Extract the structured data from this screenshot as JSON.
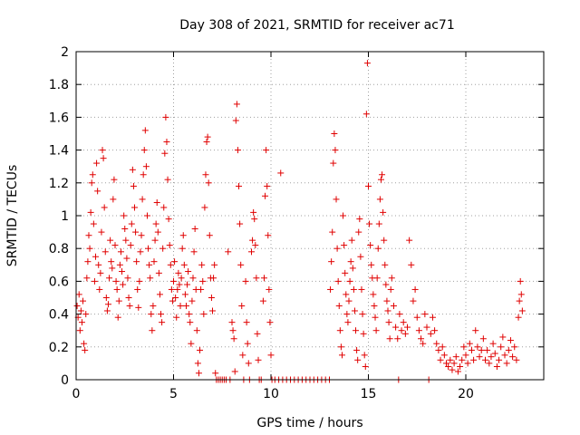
{
  "chart_data": {
    "type": "scatter",
    "title": "Day 308 of 2021, SRMTID for receiver ac71",
    "xlabel": "GPS time / hours",
    "ylabel": "SRMTID / TECUs",
    "xlim": [
      0,
      24
    ],
    "ylim": [
      0,
      2
    ],
    "x_ticks": [
      "0",
      "5",
      "10",
      "15",
      "20"
    ],
    "x_tick_values": [
      0,
      5,
      10,
      15,
      20
    ],
    "y_ticks": [
      "0",
      "0.2",
      "0.4",
      "0.6",
      "0.8",
      "1",
      "1.2",
      "1.4",
      "1.6",
      "1.8",
      "2"
    ],
    "y_tick_values": [
      0,
      0.2,
      0.4,
      0.6,
      0.8,
      1.0,
      1.2,
      1.4,
      1.6,
      1.8,
      2.0
    ],
    "grid": true,
    "marker": "+",
    "color": "#e00000",
    "points": [
      [
        0.05,
        0.45
      ],
      [
        0.1,
        0.38
      ],
      [
        0.15,
        0.52
      ],
      [
        0.2,
        0.3
      ],
      [
        0.25,
        0.42
      ],
      [
        0.3,
        0.35
      ],
      [
        0.35,
        0.48
      ],
      [
        0.4,
        0.22
      ],
      [
        0.45,
        0.18
      ],
      [
        0.5,
        0.4
      ],
      [
        0.55,
        0.62
      ],
      [
        0.6,
        0.72
      ],
      [
        0.65,
        0.88
      ],
      [
        0.7,
        0.8
      ],
      [
        0.75,
        1.02
      ],
      [
        0.8,
        1.2
      ],
      [
        0.85,
        1.25
      ],
      [
        0.9,
        0.95
      ],
      [
        0.95,
        0.6
      ],
      [
        1.0,
        0.75
      ],
      [
        1.05,
        1.32
      ],
      [
        1.1,
        1.15
      ],
      [
        1.15,
        0.7
      ],
      [
        1.2,
        0.55
      ],
      [
        1.25,
        0.65
      ],
      [
        1.3,
        0.9
      ],
      [
        1.35,
        1.4
      ],
      [
        1.4,
        1.35
      ],
      [
        1.45,
        1.05
      ],
      [
        1.5,
        0.78
      ],
      [
        1.55,
        0.5
      ],
      [
        1.6,
        0.42
      ],
      [
        1.65,
        0.46
      ],
      [
        1.7,
        0.62
      ],
      [
        1.75,
        0.85
      ],
      [
        1.8,
        0.72
      ],
      [
        1.85,
        0.68
      ],
      [
        1.9,
        1.1
      ],
      [
        1.95,
        1.22
      ],
      [
        2.0,
        0.82
      ],
      [
        2.05,
        0.6
      ],
      [
        2.1,
        0.55
      ],
      [
        2.15,
        0.38
      ],
      [
        2.2,
        0.48
      ],
      [
        2.25,
        0.7
      ],
      [
        2.3,
        0.78
      ],
      [
        2.35,
        0.66
      ],
      [
        2.4,
        0.58
      ],
      [
        2.45,
        1.0
      ],
      [
        2.5,
        0.92
      ],
      [
        2.55,
        0.85
      ],
      [
        2.6,
        0.74
      ],
      [
        2.65,
        0.62
      ],
      [
        2.7,
        0.5
      ],
      [
        2.75,
        0.45
      ],
      [
        2.8,
        0.82
      ],
      [
        2.85,
        0.95
      ],
      [
        2.9,
        1.28
      ],
      [
        2.95,
        1.18
      ],
      [
        3.0,
        1.05
      ],
      [
        3.05,
        0.9
      ],
      [
        3.1,
        0.72
      ],
      [
        3.15,
        0.55
      ],
      [
        3.2,
        0.44
      ],
      [
        3.25,
        0.6
      ],
      [
        3.3,
        0.78
      ],
      [
        3.35,
        0.88
      ],
      [
        3.4,
        1.1
      ],
      [
        3.45,
        1.25
      ],
      [
        3.5,
        1.4
      ],
      [
        3.55,
        1.52
      ],
      [
        3.6,
        1.3
      ],
      [
        3.65,
        1.0
      ],
      [
        3.7,
        0.8
      ],
      [
        3.75,
        0.7
      ],
      [
        3.8,
        0.62
      ],
      [
        3.85,
        0.4
      ],
      [
        3.9,
        0.3
      ],
      [
        3.95,
        0.45
      ],
      [
        4.0,
        0.72
      ],
      [
        4.05,
        0.85
      ],
      [
        4.1,
        0.95
      ],
      [
        4.15,
        1.08
      ],
      [
        4.2,
        0.9
      ],
      [
        4.25,
        0.65
      ],
      [
        4.3,
        0.52
      ],
      [
        4.35,
        0.4
      ],
      [
        4.4,
        0.35
      ],
      [
        4.45,
        0.8
      ],
      [
        4.5,
        1.05
      ],
      [
        4.55,
        1.38
      ],
      [
        4.6,
        1.6
      ],
      [
        4.65,
        1.45
      ],
      [
        4.7,
        1.22
      ],
      [
        4.75,
        0.98
      ],
      [
        4.8,
        0.82
      ],
      [
        4.85,
        0.7
      ],
      [
        4.9,
        0.55
      ],
      [
        4.95,
        0.48
      ],
      [
        5.0,
        0.6
      ],
      [
        5.05,
        0.72
      ],
      [
        5.1,
        0.5
      ],
      [
        5.15,
        0.38
      ],
      [
        5.2,
        0.55
      ],
      [
        5.25,
        0.65
      ],
      [
        5.3,
        0.58
      ],
      [
        5.35,
        0.45
      ],
      [
        5.4,
        0.62
      ],
      [
        5.45,
        0.8
      ],
      [
        5.5,
        0.88
      ],
      [
        5.55,
        0.7
      ],
      [
        5.6,
        0.52
      ],
      [
        5.65,
        0.45
      ],
      [
        5.7,
        0.58
      ],
      [
        5.75,
        0.66
      ],
      [
        5.8,
        0.4
      ],
      [
        5.85,
        0.35
      ],
      [
        5.9,
        0.22
      ],
      [
        5.95,
        0.48
      ],
      [
        6.0,
        0.62
      ],
      [
        6.05,
        0.78
      ],
      [
        6.1,
        0.92
      ],
      [
        6.15,
        0.55
      ],
      [
        6.2,
        0.3
      ],
      [
        6.25,
        0.1
      ],
      [
        6.3,
        0.04
      ],
      [
        6.35,
        0.18
      ],
      [
        6.4,
        0.55
      ],
      [
        6.45,
        0.7
      ],
      [
        6.5,
        0.6
      ],
      [
        6.55,
        0.4
      ],
      [
        6.6,
        1.05
      ],
      [
        6.65,
        1.25
      ],
      [
        6.7,
        1.45
      ],
      [
        6.75,
        1.48
      ],
      [
        6.8,
        1.2
      ],
      [
        6.85,
        0.88
      ],
      [
        6.9,
        0.62
      ],
      [
        6.95,
        0.5
      ],
      [
        7.0,
        0.42
      ],
      [
        7.05,
        0.62
      ],
      [
        7.1,
        0.7
      ],
      [
        7.15,
        0.04
      ],
      [
        7.2,
        0.0
      ],
      [
        7.3,
        0.0
      ],
      [
        7.4,
        0.0
      ],
      [
        7.5,
        0.0
      ],
      [
        7.6,
        0.0
      ],
      [
        7.7,
        0.0
      ],
      [
        7.8,
        0.78
      ],
      [
        7.9,
        0.0
      ],
      [
        8.0,
        0.35
      ],
      [
        8.05,
        0.3
      ],
      [
        8.1,
        0.25
      ],
      [
        8.15,
        0.05
      ],
      [
        8.2,
        1.58
      ],
      [
        8.25,
        1.68
      ],
      [
        8.3,
        1.4
      ],
      [
        8.35,
        1.18
      ],
      [
        8.4,
        0.95
      ],
      [
        8.45,
        0.7
      ],
      [
        8.5,
        0.45
      ],
      [
        8.55,
        0.15
      ],
      [
        8.6,
        0.0
      ],
      [
        8.7,
        0.6
      ],
      [
        8.75,
        0.35
      ],
      [
        8.8,
        0.22
      ],
      [
        8.85,
        0.1
      ],
      [
        8.9,
        0.0
      ],
      [
        9.0,
        0.78
      ],
      [
        9.05,
        0.85
      ],
      [
        9.1,
        1.02
      ],
      [
        9.15,
        0.98
      ],
      [
        9.2,
        0.82
      ],
      [
        9.25,
        0.62
      ],
      [
        9.3,
        0.28
      ],
      [
        9.35,
        0.12
      ],
      [
        9.4,
        0.0
      ],
      [
        9.5,
        0.0
      ],
      [
        9.6,
        0.48
      ],
      [
        9.65,
        0.62
      ],
      [
        9.7,
        1.12
      ],
      [
        9.75,
        1.4
      ],
      [
        9.8,
        1.18
      ],
      [
        9.85,
        0.88
      ],
      [
        9.9,
        0.55
      ],
      [
        9.95,
        0.35
      ],
      [
        10.0,
        0.15
      ],
      [
        10.05,
        0.0
      ],
      [
        10.2,
        0.0
      ],
      [
        10.4,
        0.0
      ],
      [
        10.5,
        1.26
      ],
      [
        10.6,
        0.0
      ],
      [
        10.8,
        0.0
      ],
      [
        11.0,
        0.0
      ],
      [
        11.2,
        0.0
      ],
      [
        11.4,
        0.0
      ],
      [
        11.6,
        0.0
      ],
      [
        11.8,
        0.0
      ],
      [
        12.0,
        0.0
      ],
      [
        12.2,
        0.0
      ],
      [
        12.4,
        0.0
      ],
      [
        12.6,
        0.0
      ],
      [
        12.8,
        0.0
      ],
      [
        13.0,
        0.0
      ],
      [
        13.05,
        0.55
      ],
      [
        13.1,
        0.72
      ],
      [
        13.15,
        0.9
      ],
      [
        13.2,
        1.32
      ],
      [
        13.25,
        1.5
      ],
      [
        13.3,
        1.4
      ],
      [
        13.35,
        1.1
      ],
      [
        13.4,
        0.8
      ],
      [
        13.45,
        0.6
      ],
      [
        13.5,
        0.45
      ],
      [
        13.55,
        0.3
      ],
      [
        13.6,
        0.2
      ],
      [
        13.65,
        0.15
      ],
      [
        13.7,
        1.0
      ],
      [
        13.75,
        0.82
      ],
      [
        13.8,
        0.65
      ],
      [
        13.85,
        0.52
      ],
      [
        13.9,
        0.4
      ],
      [
        13.95,
        0.35
      ],
      [
        14.0,
        0.48
      ],
      [
        14.05,
        0.6
      ],
      [
        14.1,
        0.72
      ],
      [
        14.15,
        0.85
      ],
      [
        14.2,
        0.68
      ],
      [
        14.25,
        0.55
      ],
      [
        14.3,
        0.42
      ],
      [
        14.35,
        0.3
      ],
      [
        14.4,
        0.18
      ],
      [
        14.45,
        0.12
      ],
      [
        14.5,
        0.9
      ],
      [
        14.55,
        0.98
      ],
      [
        14.6,
        0.75
      ],
      [
        14.65,
        0.55
      ],
      [
        14.7,
        0.4
      ],
      [
        14.75,
        0.28
      ],
      [
        14.8,
        0.15
      ],
      [
        14.85,
        0.08
      ],
      [
        14.9,
        1.62
      ],
      [
        14.95,
        1.93
      ],
      [
        15.0,
        1.18
      ],
      [
        15.05,
        0.95
      ],
      [
        15.1,
        0.82
      ],
      [
        15.15,
        0.7
      ],
      [
        15.2,
        0.62
      ],
      [
        15.25,
        0.52
      ],
      [
        15.3,
        0.45
      ],
      [
        15.35,
        0.38
      ],
      [
        15.4,
        0.3
      ],
      [
        15.45,
        0.62
      ],
      [
        15.5,
        0.8
      ],
      [
        15.55,
        0.95
      ],
      [
        15.6,
        1.1
      ],
      [
        15.65,
        1.22
      ],
      [
        15.7,
        1.25
      ],
      [
        15.75,
        1.02
      ],
      [
        15.8,
        0.85
      ],
      [
        15.85,
        0.7
      ],
      [
        15.9,
        0.58
      ],
      [
        15.95,
        0.48
      ],
      [
        16.0,
        0.42
      ],
      [
        16.05,
        0.35
      ],
      [
        16.1,
        0.25
      ],
      [
        16.15,
        0.55
      ],
      [
        16.2,
        0.62
      ],
      [
        16.3,
        0.45
      ],
      [
        16.4,
        0.32
      ],
      [
        16.5,
        0.25
      ],
      [
        16.55,
        0.0
      ],
      [
        16.6,
        0.4
      ],
      [
        16.7,
        0.3
      ],
      [
        16.8,
        0.35
      ],
      [
        16.9,
        0.28
      ],
      [
        17.0,
        0.32
      ],
      [
        17.1,
        0.85
      ],
      [
        17.2,
        0.7
      ],
      [
        17.3,
        0.48
      ],
      [
        17.4,
        0.55
      ],
      [
        17.5,
        0.38
      ],
      [
        17.6,
        0.3
      ],
      [
        17.7,
        0.25
      ],
      [
        17.8,
        0.22
      ],
      [
        17.9,
        0.4
      ],
      [
        18.0,
        0.32
      ],
      [
        18.1,
        0.0
      ],
      [
        18.2,
        0.28
      ],
      [
        18.3,
        0.38
      ],
      [
        18.4,
        0.3
      ],
      [
        18.5,
        0.22
      ],
      [
        18.6,
        0.18
      ],
      [
        18.7,
        0.12
      ],
      [
        18.8,
        0.2
      ],
      [
        18.9,
        0.15
      ],
      [
        19.0,
        0.1
      ],
      [
        19.1,
        0.08
      ],
      [
        19.2,
        0.12
      ],
      [
        19.3,
        0.06
      ],
      [
        19.4,
        0.1
      ],
      [
        19.5,
        0.14
      ],
      [
        19.6,
        0.05
      ],
      [
        19.7,
        0.08
      ],
      [
        19.8,
        0.12
      ],
      [
        19.9,
        0.2
      ],
      [
        20.0,
        0.15
      ],
      [
        20.1,
        0.1
      ],
      [
        20.2,
        0.22
      ],
      [
        20.3,
        0.18
      ],
      [
        20.4,
        0.12
      ],
      [
        20.5,
        0.3
      ],
      [
        20.6,
        0.2
      ],
      [
        20.7,
        0.14
      ],
      [
        20.8,
        0.18
      ],
      [
        20.9,
        0.25
      ],
      [
        21.0,
        0.12
      ],
      [
        21.1,
        0.18
      ],
      [
        21.2,
        0.1
      ],
      [
        21.3,
        0.14
      ],
      [
        21.4,
        0.22
      ],
      [
        21.5,
        0.16
      ],
      [
        21.6,
        0.08
      ],
      [
        21.7,
        0.12
      ],
      [
        21.8,
        0.2
      ],
      [
        21.9,
        0.26
      ],
      [
        22.0,
        0.15
      ],
      [
        22.1,
        0.1
      ],
      [
        22.2,
        0.18
      ],
      [
        22.3,
        0.24
      ],
      [
        22.4,
        0.14
      ],
      [
        22.5,
        0.2
      ],
      [
        22.6,
        0.12
      ],
      [
        22.7,
        0.38
      ],
      [
        22.75,
        0.48
      ],
      [
        22.8,
        0.6
      ],
      [
        22.85,
        0.52
      ],
      [
        22.9,
        0.42
      ]
    ]
  }
}
